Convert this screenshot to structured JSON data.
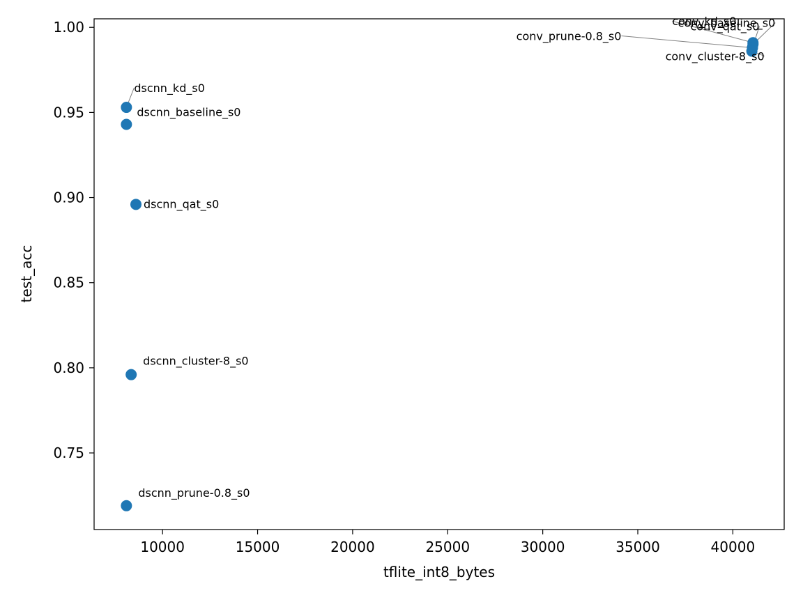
{
  "chart_data": {
    "type": "scatter",
    "title": "",
    "xlabel": "tflite_int8_bytes",
    "ylabel": "test_acc",
    "xlim": [
      6400,
      42700
    ],
    "ylim": [
      0.705,
      1.005
    ],
    "xticks": [
      10000,
      15000,
      20000,
      25000,
      30000,
      35000,
      40000
    ],
    "yticks": [
      0.75,
      0.8,
      0.85,
      0.9,
      0.95,
      1.0
    ],
    "xtick_labels": [
      "10000",
      "15000",
      "20000",
      "25000",
      "30000",
      "35000",
      "40000"
    ],
    "ytick_labels": [
      "0.75",
      "0.80",
      "0.85",
      "0.90",
      "0.95",
      "1.00"
    ],
    "grid": false,
    "color": "#1f77b4",
    "points": [
      {
        "label": "dscnn_kd_s0",
        "x": 8100,
        "y": 0.953
      },
      {
        "label": "dscnn_baseline_s0",
        "x": 8100,
        "y": 0.943
      },
      {
        "label": "dscnn_qat_s0",
        "x": 8600,
        "y": 0.896
      },
      {
        "label": "dscnn_cluster-8_s0",
        "x": 8350,
        "y": 0.796
      },
      {
        "label": "dscnn_prune-0.8_s0",
        "x": 8100,
        "y": 0.719
      },
      {
        "label": "conv_kd_s0",
        "x": 41060,
        "y": 0.991
      },
      {
        "label": "conv_baseline_s0",
        "x": 41060,
        "y": 0.99
      },
      {
        "label": "conv_qat_s0",
        "x": 41030,
        "y": 0.988
      },
      {
        "label": "conv_prune-0.8_s0",
        "x": 41030,
        "y": 0.988
      },
      {
        "label": "conv_cluster-8_s0",
        "x": 41000,
        "y": 0.986
      }
    ]
  }
}
